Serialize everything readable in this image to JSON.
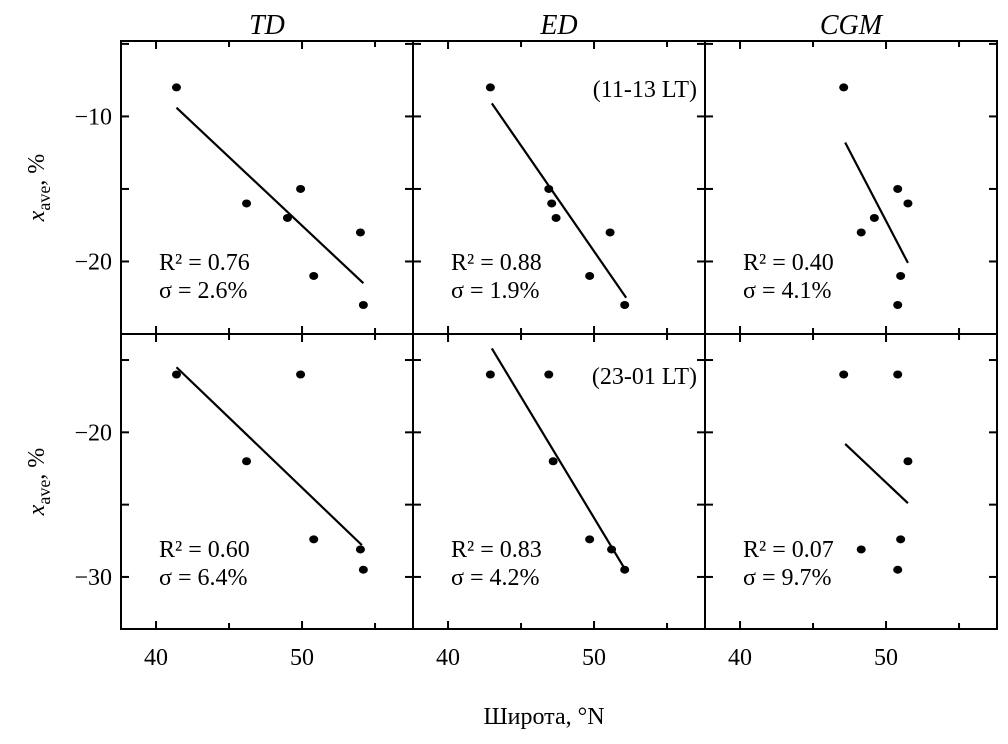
{
  "chart_data": {
    "type": "scatter",
    "xlabel": "Широта, °N",
    "ylabel_main": "x",
    "ylabel_sub": "ave",
    "ylabel_unit": ", %",
    "columns": [
      "TD",
      "ED",
      "CGM"
    ],
    "xlim": [
      37.6,
      57.6
    ],
    "xticks": [
      40,
      50
    ],
    "xminor": [
      45,
      55
    ],
    "rows": [
      {
        "ylim": [
          -25.0,
          -4.8
        ],
        "yticks": [
          -10,
          -20
        ],
        "yminor": [
          -5,
          -15,
          -25
        ],
        "time_label": "(11-13 LT)"
      },
      {
        "ylim": [
          -33.6,
          -13.2
        ],
        "yticks": [
          -20,
          -30
        ],
        "yminor": [
          -15,
          -25,
          -35
        ],
        "time_label": "(23-01 LT)"
      }
    ],
    "panels": [
      {
        "row": 0,
        "col": 0,
        "r2": "R² = 0.76",
        "sigma": "σ = 2.6%",
        "points": [
          [
            41.4,
            -8
          ],
          [
            46.2,
            -16
          ],
          [
            49.9,
            -15
          ],
          [
            49.0,
            -17
          ],
          [
            50.8,
            -21
          ],
          [
            54.0,
            -18
          ],
          [
            54.2,
            -23
          ]
        ],
        "fit": [
          [
            41.4,
            -9.4
          ],
          [
            54.2,
            -21.5
          ]
        ]
      },
      {
        "row": 0,
        "col": 1,
        "r2": "R² = 0.88",
        "sigma": "σ = 1.9%",
        "points": [
          [
            42.9,
            -8
          ],
          [
            46.9,
            -15
          ],
          [
            47.1,
            -16
          ],
          [
            47.4,
            -17
          ],
          [
            51.1,
            -18
          ],
          [
            49.7,
            -21
          ],
          [
            52.1,
            -23
          ]
        ],
        "fit": [
          [
            43.0,
            -9.1
          ],
          [
            52.2,
            -22.5
          ]
        ]
      },
      {
        "row": 0,
        "col": 2,
        "r2": "R² = 0.40",
        "sigma": "σ = 4.1%",
        "points": [
          [
            47.1,
            -8
          ],
          [
            50.8,
            -15
          ],
          [
            51.5,
            -16
          ],
          [
            49.2,
            -17
          ],
          [
            48.3,
            -18
          ],
          [
            51.0,
            -21
          ],
          [
            50.8,
            -23
          ]
        ],
        "fit": [
          [
            47.2,
            -11.8
          ],
          [
            51.5,
            -20.1
          ]
        ]
      },
      {
        "row": 1,
        "col": 0,
        "r2": "R² = 0.60",
        "sigma": "σ = 6.4%",
        "points": [
          [
            41.4,
            -16
          ],
          [
            49.9,
            -16
          ],
          [
            46.2,
            -22
          ],
          [
            50.8,
            -27.4
          ],
          [
            54.0,
            -28.1
          ],
          [
            54.2,
            -29.5
          ]
        ],
        "fit": [
          [
            41.4,
            -15.5
          ],
          [
            54.1,
            -27.8
          ]
        ]
      },
      {
        "row": 1,
        "col": 1,
        "r2": "R² = 0.83",
        "sigma": "σ = 4.2%",
        "points": [
          [
            42.9,
            -16
          ],
          [
            46.9,
            -16
          ],
          [
            47.2,
            -22
          ],
          [
            49.7,
            -27.4
          ],
          [
            51.2,
            -28.1
          ],
          [
            52.1,
            -29.5
          ]
        ],
        "fit": [
          [
            43.0,
            -14.2
          ],
          [
            52.2,
            -29.6
          ]
        ]
      },
      {
        "row": 1,
        "col": 2,
        "r2": "R² = 0.07",
        "sigma": "σ = 9.7%",
        "points": [
          [
            47.1,
            -16
          ],
          [
            50.8,
            -16
          ],
          [
            51.5,
            -22
          ],
          [
            51.0,
            -27.4
          ],
          [
            48.3,
            -28.1
          ],
          [
            50.8,
            -29.5
          ]
        ],
        "fit": [
          [
            47.2,
            -20.8
          ],
          [
            51.5,
            -24.9
          ]
        ]
      }
    ]
  }
}
